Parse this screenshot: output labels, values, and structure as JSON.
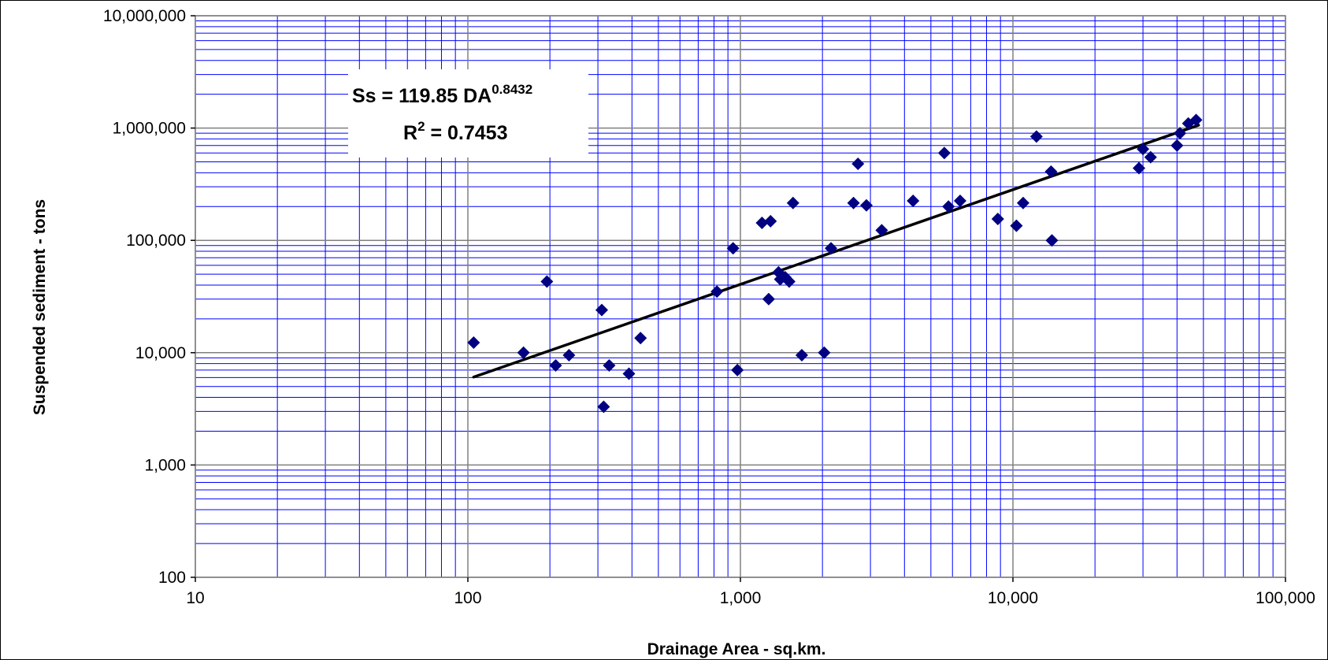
{
  "chart_data": {
    "type": "scatter",
    "xlabel": "Drainage Area - sq.km.",
    "ylabel": "Suspended sediment - tons",
    "x_scale": "log",
    "y_scale": "log",
    "xlim": [
      10,
      100000
    ],
    "ylim": [
      100,
      10000000
    ],
    "x_ticks": [
      10,
      100,
      1000,
      10000,
      100000
    ],
    "x_tick_labels": [
      "10",
      "100",
      "1,000",
      "10,000",
      "100,000"
    ],
    "y_ticks": [
      100,
      1000,
      10000,
      100000,
      1000000,
      10000000
    ],
    "y_tick_labels": [
      "100",
      "1,000",
      "10,000",
      "100,000",
      "1,000,000",
      "10,000,000"
    ],
    "grid": true,
    "colors": {
      "marker": "#000080",
      "major_grid": "#808080",
      "minor_grid": "#0000FF",
      "trendline": "#000000"
    },
    "trendline": {
      "type": "power",
      "coefficient": 119.85,
      "exponent": 0.8432,
      "x_range": [
        105,
        48000
      ],
      "equation_prefix": "Ss = 119.85 DA",
      "equation_exponent": "0.8432",
      "r2_prefix": "R",
      "r2_power": "2",
      "r2_value": " = 0.7453"
    },
    "points": [
      [
        105,
        12300
      ],
      [
        160,
        10000
      ],
      [
        195,
        43000
      ],
      [
        210,
        7700
      ],
      [
        235,
        9500
      ],
      [
        310,
        24000
      ],
      [
        315,
        3300
      ],
      [
        330,
        7700
      ],
      [
        390,
        6500
      ],
      [
        430,
        13500
      ],
      [
        820,
        35000
      ],
      [
        940,
        85000
      ],
      [
        975,
        7000
      ],
      [
        1200,
        143000
      ],
      [
        1270,
        30000
      ],
      [
        1290,
        148000
      ],
      [
        1380,
        52000
      ],
      [
        1400,
        45000
      ],
      [
        1460,
        47000
      ],
      [
        1510,
        43000
      ],
      [
        1560,
        215000
      ],
      [
        1680,
        9500
      ],
      [
        2030,
        10000
      ],
      [
        2150,
        85000
      ],
      [
        2600,
        215000
      ],
      [
        2700,
        480000
      ],
      [
        2900,
        205000
      ],
      [
        3300,
        123000
      ],
      [
        4300,
        225000
      ],
      [
        5600,
        600000
      ],
      [
        5800,
        200000
      ],
      [
        6400,
        225000
      ],
      [
        8800,
        155000
      ],
      [
        10300,
        135000
      ],
      [
        10900,
        215000
      ],
      [
        12200,
        840000
      ],
      [
        13800,
        410000
      ],
      [
        13900,
        100000
      ],
      [
        29000,
        440000
      ],
      [
        30000,
        650000
      ],
      [
        32000,
        550000
      ],
      [
        40000,
        700000
      ],
      [
        41000,
        900000
      ],
      [
        44000,
        1100000
      ],
      [
        47000,
        1180000
      ]
    ]
  }
}
